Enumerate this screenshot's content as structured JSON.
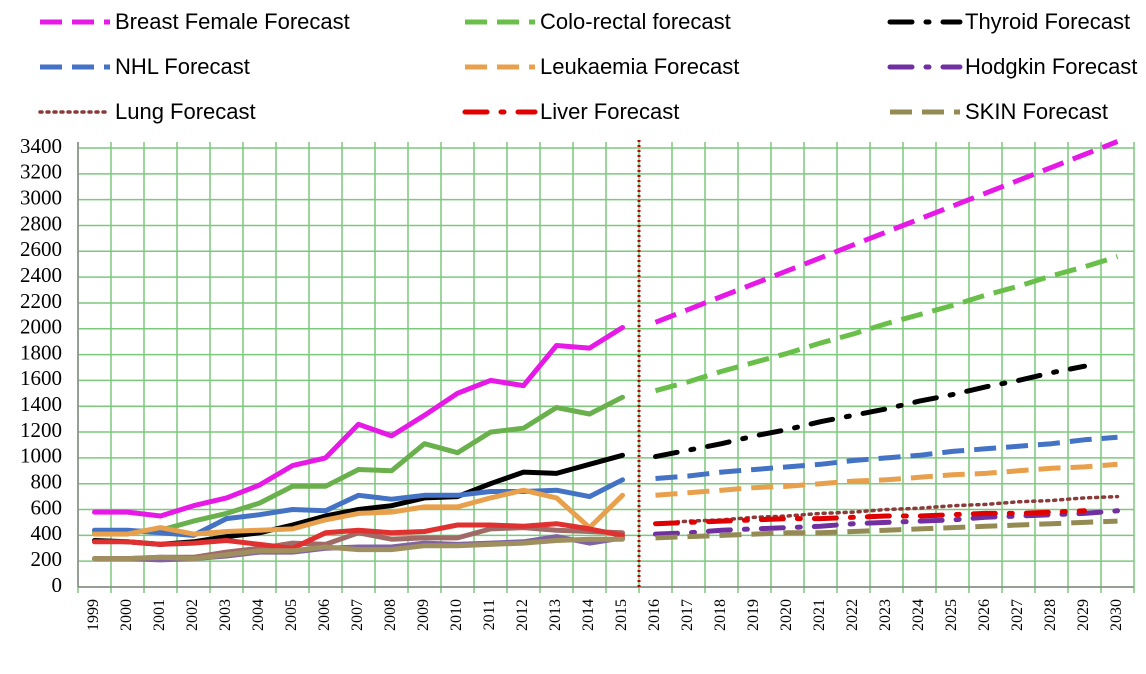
{
  "chart_data": {
    "type": "line",
    "categories": [
      "1999",
      "2000",
      "2001",
      "2002",
      "2003",
      "2004",
      "2005",
      "2006",
      "2007",
      "2008",
      "2009",
      "2010",
      "2011",
      "2012",
      "2013",
      "2014",
      "2015",
      "2016",
      "2017",
      "2018",
      "2019",
      "2020",
      "2021",
      "2022",
      "2023",
      "2024",
      "2025",
      "2026",
      "2027",
      "2028",
      "2029",
      "2030"
    ],
    "ylim": [
      0,
      3400
    ],
    "yticks": [
      0,
      200,
      400,
      600,
      800,
      1000,
      1200,
      1400,
      1600,
      1800,
      2000,
      2200,
      2400,
      2600,
      2800,
      3000,
      3200,
      3400
    ],
    "grid": true,
    "series": [
      {
        "color": "#e619e6",
        "style": "solid",
        "values": [
          580,
          580,
          550,
          630,
          690,
          790,
          940,
          1000,
          1260,
          1170,
          1330,
          1500,
          1600,
          1560,
          1870,
          1850,
          2010,
          null,
          null,
          null,
          null,
          null,
          null,
          null,
          null,
          null,
          null,
          null,
          null,
          null,
          null,
          null
        ]
      },
      {
        "color": "#6ab04c",
        "style": "solid",
        "values": [
          420,
          430,
          440,
          510,
          570,
          650,
          780,
          780,
          910,
          900,
          1110,
          1040,
          1200,
          1230,
          1390,
          1340,
          1470,
          null,
          null,
          null,
          null,
          null,
          null,
          null,
          null,
          null,
          null,
          null,
          null,
          null,
          null,
          null
        ]
      },
      {
        "color": "#000000",
        "style": "solid",
        "values": [
          360,
          350,
          330,
          350,
          390,
          420,
          480,
          550,
          600,
          630,
          690,
          700,
          800,
          890,
          880,
          950,
          1020,
          null,
          null,
          null,
          null,
          null,
          null,
          null,
          null,
          null,
          null,
          null,
          null,
          null,
          null,
          null
        ]
      },
      {
        "color": "#4472c4",
        "style": "solid",
        "values": [
          440,
          440,
          420,
          400,
          530,
          560,
          600,
          590,
          710,
          680,
          710,
          710,
          740,
          740,
          750,
          700,
          830,
          null,
          null,
          null,
          null,
          null,
          null,
          null,
          null,
          null,
          null,
          null,
          null,
          null,
          null,
          null
        ]
      },
      {
        "color": "#e8a04c",
        "style": "solid",
        "values": [
          410,
          410,
          460,
          410,
          430,
          440,
          450,
          520,
          570,
          580,
          620,
          620,
          690,
          750,
          690,
          460,
          710,
          null,
          null,
          null,
          null,
          null,
          null,
          null,
          null,
          null,
          null,
          null,
          null,
          null,
          null,
          null
        ]
      },
      {
        "color": "#8064a2",
        "style": "solid",
        "values": [
          220,
          220,
          210,
          220,
          240,
          270,
          270,
          300,
          310,
          310,
          340,
          330,
          340,
          350,
          390,
          340,
          380,
          null,
          null,
          null,
          null,
          null,
          null,
          null,
          null,
          null,
          null,
          null,
          null,
          null,
          null,
          null
        ]
      },
      {
        "color": "#a06a66",
        "style": "solid",
        "values": [
          220,
          220,
          230,
          230,
          270,
          300,
          340,
          330,
          420,
          370,
          380,
          380,
          450,
          460,
          440,
          430,
          420,
          null,
          null,
          null,
          null,
          null,
          null,
          null,
          null,
          null,
          null,
          null,
          null,
          null,
          null,
          null
        ]
      },
      {
        "color": "#e03030",
        "style": "solid",
        "values": [
          350,
          350,
          330,
          340,
          360,
          330,
          300,
          420,
          440,
          420,
          430,
          480,
          480,
          470,
          490,
          450,
          400,
          null,
          null,
          null,
          null,
          null,
          null,
          null,
          null,
          null,
          null,
          null,
          null,
          null,
          null,
          null
        ]
      },
      {
        "color": "#a09060",
        "style": "solid",
        "values": [
          220,
          220,
          230,
          220,
          250,
          280,
          280,
          310,
          290,
          290,
          320,
          320,
          330,
          340,
          360,
          370,
          370,
          null,
          null,
          null,
          null,
          null,
          null,
          null,
          null,
          null,
          null,
          null,
          null,
          null,
          null,
          null
        ]
      },
      {
        "name": "Breast Female Forecast",
        "color": "#e619e6",
        "style": "dashed",
        "values": [
          null,
          null,
          null,
          null,
          null,
          null,
          null,
          null,
          null,
          null,
          null,
          null,
          null,
          null,
          null,
          null,
          null,
          2050,
          2150,
          2250,
          2350,
          2450,
          2550,
          2650,
          2750,
          2850,
          2950,
          3050,
          3150,
          3250,
          3350,
          3450
        ]
      },
      {
        "name": "Colo-rectal forecast",
        "color": "#6abf4b",
        "style": "dashed",
        "values": [
          null,
          null,
          null,
          null,
          null,
          null,
          null,
          null,
          null,
          null,
          null,
          null,
          null,
          null,
          null,
          null,
          null,
          1520,
          1590,
          1670,
          1740,
          1810,
          1890,
          1960,
          2040,
          2110,
          2180,
          2260,
          2330,
          2410,
          2480,
          2560
        ]
      },
      {
        "name": "Thyroid Forecast",
        "color": "#000000",
        "style": "dash-dot",
        "values": [
          null,
          null,
          null,
          null,
          null,
          null,
          null,
          null,
          null,
          null,
          null,
          null,
          null,
          null,
          null,
          null,
          null,
          1010,
          1060,
          1110,
          1170,
          1220,
          1280,
          1330,
          1380,
          1440,
          1490,
          1550,
          1600,
          1660,
          1710,
          null
        ]
      },
      {
        "name": "NHL Forecast",
        "color": "#4472c4",
        "style": "dashed",
        "values": [
          null,
          null,
          null,
          null,
          null,
          null,
          null,
          null,
          null,
          null,
          null,
          null,
          null,
          null,
          null,
          null,
          null,
          840,
          860,
          890,
          910,
          930,
          950,
          980,
          1000,
          1020,
          1050,
          1070,
          1090,
          1110,
          1140,
          1160
        ]
      },
      {
        "name": "Leukaemia Forecast",
        "color": "#e8a04c",
        "style": "dashed",
        "values": [
          null,
          null,
          null,
          null,
          null,
          null,
          null,
          null,
          null,
          null,
          null,
          null,
          null,
          null,
          null,
          null,
          null,
          710,
          730,
          750,
          770,
          780,
          800,
          820,
          830,
          850,
          870,
          880,
          900,
          920,
          930,
          950
        ]
      },
      {
        "name": "Hodgkin Forecast",
        "color": "#7030a0",
        "style": "dash-dot",
        "values": [
          null,
          null,
          null,
          null,
          null,
          null,
          null,
          null,
          null,
          null,
          null,
          null,
          null,
          null,
          null,
          null,
          null,
          410,
          420,
          440,
          450,
          460,
          470,
          490,
          500,
          510,
          520,
          540,
          550,
          560,
          570,
          590
        ]
      },
      {
        "name": "Lung Forecast",
        "color": "#8b3a3a",
        "style": "dotted",
        "values": [
          null,
          null,
          null,
          null,
          null,
          null,
          null,
          null,
          null,
          null,
          null,
          null,
          null,
          null,
          null,
          null,
          null,
          490,
          510,
          520,
          540,
          550,
          570,
          580,
          600,
          610,
          630,
          640,
          660,
          670,
          690,
          700
        ]
      },
      {
        "name": "Liver Forecast",
        "color": "#e00000",
        "style": "dash-dot",
        "values": [
          null,
          null,
          null,
          null,
          null,
          null,
          null,
          null,
          null,
          null,
          null,
          null,
          null,
          null,
          null,
          null,
          null,
          490,
          500,
          510,
          520,
          530,
          530,
          540,
          550,
          550,
          560,
          570,
          570,
          580,
          590,
          null
        ]
      },
      {
        "name": "SKIN Forecast",
        "color": "#948a54",
        "style": "dashed",
        "values": [
          null,
          null,
          null,
          null,
          null,
          null,
          null,
          null,
          null,
          null,
          null,
          null,
          null,
          null,
          null,
          null,
          null,
          380,
          390,
          400,
          410,
          420,
          420,
          430,
          440,
          450,
          460,
          470,
          480,
          490,
          500,
          510
        ]
      }
    ]
  }
}
